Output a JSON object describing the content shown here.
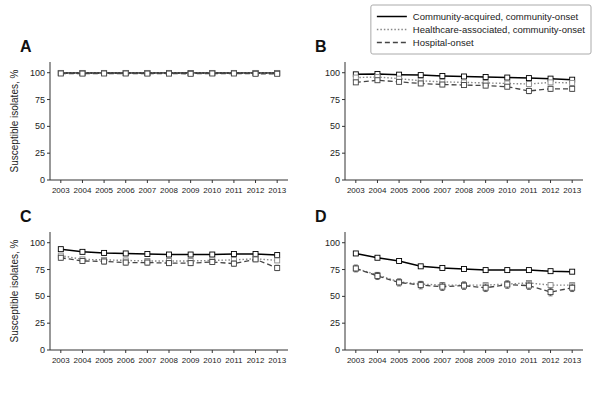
{
  "chart_data": [
    {
      "type": "line",
      "title": "A",
      "ylabel": "Susceptible isolates, %",
      "marker": "square",
      "x": [
        2003,
        2004,
        2005,
        2006,
        2007,
        2008,
        2009,
        2010,
        2011,
        2012,
        2013
      ],
      "xlim": [
        2002.5,
        2013.5
      ],
      "xticks": [
        2003,
        2004,
        2005,
        2006,
        2007,
        2008,
        2009,
        2010,
        2011,
        2012,
        2013
      ],
      "ylim": [
        0,
        110
      ],
      "yticks": [
        0,
        25,
        50,
        75,
        100
      ],
      "series": [
        {
          "color": "#000000",
          "line_style": "solid",
          "values": [
            99.8,
            99.8,
            99.8,
            99.8,
            99.8,
            99.8,
            99.7,
            99.8,
            99.8,
            99.8,
            99.8
          ],
          "errors": [
            0.1,
            0.1,
            0.1,
            0.1,
            0.1,
            0.1,
            0.1,
            0.1,
            0.1,
            0.1,
            0.1
          ]
        },
        {
          "color": "#888888",
          "line_style": "dotted",
          "values": [
            99.6,
            99.5,
            99.6,
            99.6,
            99.6,
            99.5,
            99.4,
            99.6,
            99.6,
            99.5,
            99.5
          ],
          "errors": [
            0.15,
            0.15,
            0.15,
            0.15,
            0.15,
            0.15,
            0.2,
            0.15,
            0.15,
            0.2,
            0.2
          ]
        },
        {
          "color": "#444444",
          "line_style": "dashed",
          "values": [
            99.3,
            99.2,
            99.3,
            99.3,
            99.2,
            99.2,
            99.0,
            99.3,
            99.3,
            99.0,
            99.0
          ],
          "errors": [
            0.4,
            0.4,
            0.4,
            0.4,
            0.4,
            0.4,
            0.4,
            0.4,
            0.4,
            0.5,
            0.5
          ]
        }
      ]
    },
    {
      "type": "line",
      "title": "B",
      "marker": "square",
      "legend": "upper right",
      "x": [
        2003,
        2004,
        2005,
        2006,
        2007,
        2008,
        2009,
        2010,
        2011,
        2012,
        2013
      ],
      "xlim": [
        2002.5,
        2013.5
      ],
      "xticks": [
        2003,
        2004,
        2005,
        2006,
        2007,
        2008,
        2009,
        2010,
        2011,
        2012,
        2013
      ],
      "ylim": [
        0,
        110
      ],
      "yticks": [
        0,
        25,
        50,
        75,
        100
      ],
      "series": [
        {
          "name": "Community-acquired, community-onset",
          "color": "#000000",
          "line_style": "solid",
          "values": [
            98.5,
            98.8,
            98.2,
            97.8,
            97.0,
            96.5,
            96.0,
            95.5,
            95.0,
            94.5,
            93.5
          ],
          "errors": [
            0.4,
            0.4,
            0.4,
            0.4,
            0.5,
            0.5,
            0.5,
            0.6,
            0.6,
            0.7,
            0.7
          ]
        },
        {
          "name": "Healthcare-associated, community-onset",
          "color": "#888888",
          "line_style": "dotted",
          "values": [
            95.5,
            96.0,
            94.5,
            92.5,
            91.5,
            91.0,
            90.5,
            90.0,
            89.5,
            91.0,
            90.5
          ],
          "errors": [
            0.8,
            0.8,
            0.9,
            1.0,
            1.0,
            1.1,
            1.1,
            1.2,
            1.2,
            1.1,
            1.1
          ]
        },
        {
          "name": "Hospital-onset",
          "color": "#444444",
          "line_style": "dashed",
          "values": [
            91.0,
            93.0,
            91.5,
            90.0,
            89.0,
            88.5,
            88.0,
            87.0,
            83.0,
            85.0,
            85.0
          ],
          "errors": [
            1.8,
            1.8,
            1.8,
            2.0,
            2.0,
            2.0,
            2.0,
            2.0,
            2.5,
            2.3,
            2.3
          ]
        }
      ]
    },
    {
      "type": "line",
      "title": "C",
      "ylabel": "Susceptible isolates, %",
      "marker": "square",
      "x": [
        2003,
        2004,
        2005,
        2006,
        2007,
        2008,
        2009,
        2010,
        2011,
        2012,
        2013
      ],
      "xlim": [
        2002.5,
        2013.5
      ],
      "xticks": [
        2003,
        2004,
        2005,
        2006,
        2007,
        2008,
        2009,
        2010,
        2011,
        2012,
        2013
      ],
      "ylim": [
        0,
        110
      ],
      "yticks": [
        0,
        25,
        50,
        75,
        100
      ],
      "series": [
        {
          "color": "#000000",
          "line_style": "solid",
          "values": [
            94.0,
            91.5,
            90.5,
            90.0,
            89.5,
            89.0,
            89.0,
            89.0,
            89.5,
            89.5,
            88.5
          ],
          "errors": [
            0.7,
            0.8,
            0.8,
            0.8,
            0.8,
            0.8,
            0.8,
            0.8,
            0.8,
            0.8,
            0.8
          ]
        },
        {
          "color": "#888888",
          "line_style": "dotted",
          "values": [
            88.0,
            84.5,
            84.0,
            83.5,
            83.0,
            83.0,
            83.0,
            83.5,
            84.0,
            85.0,
            83.5
          ],
          "errors": [
            1.3,
            1.4,
            1.4,
            1.4,
            1.4,
            1.4,
            1.4,
            1.4,
            1.4,
            1.3,
            1.4
          ]
        },
        {
          "color": "#444444",
          "line_style": "dashed",
          "values": [
            86.0,
            83.0,
            82.5,
            81.5,
            81.5,
            81.0,
            81.0,
            82.0,
            80.5,
            84.5,
            76.5
          ],
          "errors": [
            2.2,
            2.3,
            2.3,
            2.3,
            2.3,
            2.3,
            2.3,
            2.3,
            2.4,
            2.2,
            2.5
          ]
        }
      ]
    },
    {
      "type": "line",
      "title": "D",
      "marker": "square",
      "x": [
        2003,
        2004,
        2005,
        2006,
        2007,
        2008,
        2009,
        2010,
        2011,
        2012,
        2013
      ],
      "xlim": [
        2002.5,
        2013.5
      ],
      "xticks": [
        2003,
        2004,
        2005,
        2006,
        2007,
        2008,
        2009,
        2010,
        2011,
        2012,
        2013
      ],
      "ylim": [
        0,
        110
      ],
      "yticks": [
        0,
        25,
        50,
        75,
        100
      ],
      "series": [
        {
          "color": "#000000",
          "line_style": "solid",
          "values": [
            90.0,
            86.0,
            83.0,
            78.0,
            76.5,
            75.5,
            74.5,
            74.5,
            74.5,
            73.5,
            73.0
          ],
          "errors": [
            0.8,
            0.9,
            0.9,
            1.0,
            1.0,
            1.0,
            1.0,
            1.0,
            1.0,
            1.1,
            1.1
          ]
        },
        {
          "color": "#888888",
          "line_style": "dotted",
          "values": [
            76.0,
            70.0,
            63.5,
            61.5,
            60.5,
            60.5,
            60.5,
            61.5,
            62.5,
            60.5,
            60.5
          ],
          "errors": [
            1.8,
            1.9,
            2.0,
            2.0,
            2.0,
            2.0,
            2.0,
            2.0,
            2.0,
            2.0,
            2.0
          ]
        },
        {
          "color": "#444444",
          "line_style": "dashed",
          "values": [
            76.0,
            69.0,
            63.0,
            60.5,
            59.0,
            60.0,
            58.0,
            61.0,
            60.0,
            54.0,
            58.0
          ],
          "errors": [
            3.2,
            3.3,
            3.3,
            3.5,
            3.5,
            3.5,
            3.5,
            3.5,
            3.5,
            3.5,
            3.5
          ]
        }
      ]
    }
  ]
}
